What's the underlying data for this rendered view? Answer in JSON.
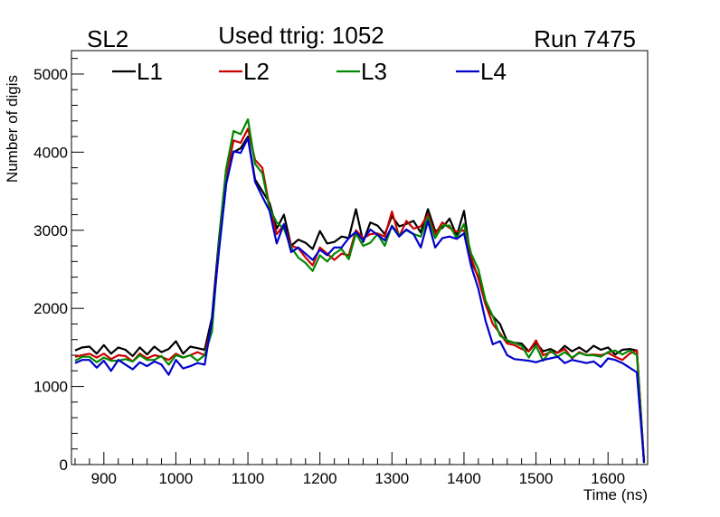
{
  "chart_data": {
    "type": "line",
    "header": {
      "left": "SL2",
      "center": "Used ttrig: 1052",
      "right": "Run 7475"
    },
    "xlabel": "Time (ns)",
    "ylabel": "Number of digis",
    "xlim": [
      855,
      1655
    ],
    "ylim": [
      0,
      5300
    ],
    "x_ticks": [
      900,
      1000,
      1100,
      1200,
      1300,
      1400,
      1500,
      1600
    ],
    "y_ticks": [
      0,
      1000,
      2000,
      3000,
      4000,
      5000
    ],
    "legend_position": "top",
    "grid": false,
    "x": [
      860,
      870,
      880,
      890,
      900,
      910,
      920,
      930,
      940,
      950,
      960,
      970,
      980,
      990,
      1000,
      1010,
      1020,
      1030,
      1040,
      1050,
      1060,
      1070,
      1080,
      1090,
      1100,
      1110,
      1120,
      1130,
      1140,
      1150,
      1160,
      1170,
      1180,
      1190,
      1200,
      1210,
      1220,
      1230,
      1240,
      1250,
      1260,
      1270,
      1280,
      1290,
      1300,
      1310,
      1320,
      1330,
      1340,
      1350,
      1360,
      1370,
      1380,
      1390,
      1400,
      1410,
      1420,
      1430,
      1440,
      1450,
      1460,
      1470,
      1480,
      1490,
      1500,
      1510,
      1520,
      1530,
      1540,
      1550,
      1560,
      1570,
      1580,
      1590,
      1600,
      1610,
      1620,
      1630,
      1640,
      1650
    ],
    "series": [
      {
        "name": "L1",
        "color": "#000000",
        "values": [
          1460,
          1500,
          1510,
          1420,
          1530,
          1420,
          1500,
          1470,
          1390,
          1500,
          1410,
          1510,
          1440,
          1480,
          1580,
          1420,
          1510,
          1490,
          1470,
          1880,
          2900,
          3800,
          4000,
          4050,
          4200,
          3650,
          3500,
          3350,
          3020,
          3200,
          2800,
          2880,
          2840,
          2760,
          2990,
          2830,
          2850,
          2920,
          2900,
          3270,
          2850,
          3100,
          3060,
          2950,
          3180,
          3050,
          3080,
          3120,
          2970,
          3270,
          2990,
          3030,
          3150,
          2930,
          3250,
          2600,
          2400,
          2050,
          1900,
          1800,
          1580,
          1560,
          1550,
          1450,
          1560,
          1450,
          1480,
          1430,
          1520,
          1450,
          1500,
          1440,
          1520,
          1470,
          1500,
          1410,
          1470,
          1480,
          1460,
          20
        ]
      },
      {
        "name": "L2",
        "color": "#cc0000",
        "values": [
          1380,
          1400,
          1420,
          1370,
          1420,
          1350,
          1400,
          1390,
          1320,
          1420,
          1360,
          1400,
          1380,
          1340,
          1420,
          1370,
          1400,
          1440,
          1400,
          1800,
          2800,
          3700,
          4150,
          4120,
          4300,
          3900,
          3800,
          3300,
          2950,
          3070,
          2800,
          2770,
          2650,
          2550,
          2780,
          2700,
          2620,
          2700,
          2680,
          3000,
          2900,
          2950,
          2960,
          2920,
          3240,
          2920,
          3120,
          3020,
          3050,
          3200,
          2950,
          3100,
          3030,
          2980,
          3000,
          2650,
          2380,
          2050,
          1800,
          1680,
          1550,
          1530,
          1480,
          1450,
          1590,
          1400,
          1440,
          1430,
          1480,
          1360,
          1440,
          1400,
          1410,
          1400,
          1430,
          1380,
          1340,
          1420,
          1460,
          50
        ]
      },
      {
        "name": "L3",
        "color": "#008800",
        "values": [
          1330,
          1380,
          1380,
          1310,
          1370,
          1330,
          1330,
          1350,
          1320,
          1400,
          1340,
          1340,
          1390,
          1280,
          1400,
          1370,
          1400,
          1330,
          1400,
          1700,
          2850,
          3800,
          4270,
          4230,
          4420,
          3850,
          3730,
          3280,
          3100,
          3020,
          2780,
          2650,
          2580,
          2480,
          2680,
          2600,
          2700,
          2760,
          2630,
          2960,
          2800,
          2840,
          2950,
          2800,
          3060,
          2940,
          3000,
          2950,
          2920,
          3170,
          2900,
          3060,
          3060,
          2900,
          3080,
          2700,
          2500,
          2100,
          1900,
          1650,
          1590,
          1560,
          1520,
          1370,
          1520,
          1330,
          1460,
          1380,
          1440,
          1370,
          1430,
          1400,
          1400,
          1380,
          1440,
          1460,
          1410,
          1460,
          1400,
          30
        ]
      },
      {
        "name": "L4",
        "color": "#0000cc",
        "values": [
          1300,
          1340,
          1340,
          1240,
          1330,
          1200,
          1340,
          1280,
          1220,
          1310,
          1260,
          1320,
          1280,
          1150,
          1340,
          1230,
          1260,
          1300,
          1280,
          1850,
          2750,
          3600,
          4010,
          3990,
          4180,
          3620,
          3430,
          3250,
          2830,
          3080,
          2720,
          2780,
          2700,
          2620,
          2750,
          2680,
          2780,
          2780,
          2900,
          2980,
          2870,
          3010,
          2940,
          2870,
          3050,
          2920,
          3010,
          2950,
          2780,
          3120,
          2780,
          2900,
          2920,
          2890,
          2960,
          2540,
          2250,
          1840,
          1540,
          1580,
          1400,
          1350,
          1340,
          1330,
          1310,
          1340,
          1360,
          1380,
          1300,
          1340,
          1320,
          1300,
          1320,
          1250,
          1360,
          1340,
          1300,
          1240,
          1180,
          30
        ]
      }
    ]
  }
}
